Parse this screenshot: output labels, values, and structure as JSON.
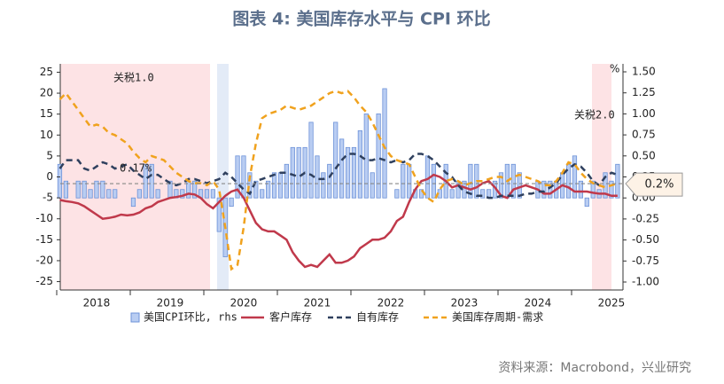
{
  "chart_data": {
    "type": "bar_line",
    "title": "图表 4:  美国库存水平与 CPI 环比",
    "source": "资料来源：Macrobond，兴业研究",
    "y2_unit": "%",
    "annotations": [
      "关税1.0",
      "关税2.0"
    ],
    "reference": {
      "value": 0.17,
      "label": "0.17%",
      "callout": "0.2%",
      "color": "#888888"
    },
    "categories": [
      null,
      null,
      null,
      null,
      null,
      null,
      "2018",
      null,
      null,
      null,
      null,
      null,
      null,
      null,
      null,
      null,
      null,
      null,
      "2019",
      null,
      null,
      null,
      null,
      null,
      null,
      null,
      null,
      null,
      null,
      null,
      "2020",
      null,
      null,
      null,
      null,
      null,
      null,
      null,
      null,
      null,
      null,
      null,
      "2021",
      null,
      null,
      null,
      null,
      null,
      null,
      null,
      null,
      null,
      null,
      null,
      "2022",
      null,
      null,
      null,
      null,
      null,
      null,
      null,
      null,
      null,
      null,
      null,
      "2023",
      null,
      null,
      null,
      null,
      null,
      null,
      null,
      null,
      null,
      null,
      null,
      "2024",
      null,
      null,
      null,
      null,
      null,
      null,
      null,
      null,
      null,
      null,
      null,
      "2025",
      null
    ],
    "ylim": [
      -27,
      27
    ],
    "yticks": [
      25,
      20,
      15,
      10,
      5,
      0,
      -5,
      -10,
      -15,
      -20,
      -25
    ],
    "y2lim": [
      -1.095,
      1.595
    ],
    "y2ticks": [
      {
        "value": 1.5,
        "label": "1.50"
      },
      {
        "value": 1.25,
        "label": "1.25"
      },
      {
        "value": 1,
        "label": "1.00"
      },
      {
        "value": 0.75,
        "label": "0.75"
      },
      {
        "value": 0.5,
        "label": "0.50"
      },
      {
        "value": 0.25,
        "label": "0.25"
      },
      {
        "value": 0,
        "label": "0.00"
      },
      {
        "value": -0.25,
        "label": "-0.25"
      },
      {
        "value": -0.5,
        "label": "-0.50"
      },
      {
        "value": -0.75,
        "label": "-0.75"
      },
      {
        "value": -1,
        "label": "-1.00"
      }
    ],
    "series": [
      {
        "name": "美国CPI环比, rhs",
        "type": "bar",
        "axis": "y2",
        "color": "#b9cdf2",
        "values": [
          0.4,
          0.2,
          0.0,
          0.2,
          0.2,
          0.1,
          0.2,
          0.2,
          0.1,
          0.1,
          0.0,
          0.0,
          -0.1,
          0.1,
          0.4,
          0.4,
          0.1,
          0.0,
          0.2,
          0.1,
          0.1,
          0.2,
          0.2,
          0.1,
          0.1,
          0.1,
          -0.4,
          -0.7,
          -0.1,
          0.5,
          0.5,
          0.3,
          0.2,
          0.1,
          0.2,
          0.3,
          0.3,
          0.4,
          0.6,
          0.6,
          0.6,
          0.9,
          0.5,
          0.3,
          0.4,
          0.9,
          0.7,
          0.6,
          0.6,
          0.8,
          1.0,
          0.3,
          1.0,
          1.3,
          0.0,
          0.1,
          0.4,
          0.4,
          0.1,
          0.1,
          0.5,
          0.4,
          0.1,
          0.4,
          0.1,
          0.2,
          0.2,
          0.4,
          0.4,
          0.1,
          0.1,
          0.2,
          0.3,
          0.4,
          0.4,
          0.3,
          0.0,
          0.0,
          0.2,
          0.2,
          0.2,
          0.2,
          0.3,
          0.4,
          0.5,
          0.2,
          -0.1,
          0.2,
          0.1,
          0.3,
          0.2,
          0.4
        ]
      },
      {
        "name": "客户库存",
        "type": "line",
        "color": "#c0394b",
        "dash": false,
        "values": [
          -5.5,
          -5.8,
          -6,
          -6.3,
          -7,
          -8,
          -9,
          -10,
          -9.8,
          -9.5,
          -9,
          -9.2,
          -9,
          -8.5,
          -7.5,
          -7,
          -6,
          -5.5,
          -5,
          -4.8,
          -4.5,
          -4,
          -4.2,
          -5,
          -6.5,
          -7.5,
          -6,
          -4.5,
          -3.5,
          -3,
          -5,
          -8,
          -11,
          -12.5,
          -13,
          -13,
          -14,
          -15,
          -18,
          -20,
          -21.5,
          -21,
          -21.5,
          -20,
          -18.5,
          -20.5,
          -20.5,
          -20,
          -19,
          -17,
          -16,
          -15,
          -15,
          -14.5,
          -13,
          -10.5,
          -9.5,
          -6,
          -3,
          -1,
          -0.5,
          0.5,
          0,
          -1,
          -2.5,
          -2,
          -2.5,
          -3,
          -2.5,
          -1.5,
          -1,
          -2.5,
          -4.5,
          -5,
          -3,
          -2.5,
          -2,
          -2.5,
          -3,
          -4,
          -4,
          -3,
          -2,
          -2.5,
          -3.5,
          -3.5,
          -3.5,
          -3.8,
          -4,
          -4,
          -4.5,
          -4.5
        ]
      },
      {
        "name": "自有库存",
        "type": "line",
        "color": "#2f405e",
        "dash": true,
        "values": [
          2,
          4,
          4,
          4,
          2,
          1.5,
          2.5,
          3.5,
          3,
          2,
          2.5,
          3,
          1.5,
          0.5,
          -0.5,
          0.5,
          0.5,
          -0.5,
          -1.5,
          -2,
          -1.5,
          -0.5,
          -0.5,
          -1,
          -1.5,
          -1,
          -0.5,
          1,
          0,
          -1.5,
          -3,
          -4,
          -1,
          -0.5,
          0,
          0.5,
          1,
          1,
          0.5,
          0,
          1,
          0.5,
          -0.5,
          -0.5,
          0,
          2,
          4,
          5.5,
          5.5,
          5,
          4,
          4,
          4.5,
          4,
          3.5,
          4,
          3.5,
          4,
          5.5,
          5.5,
          5,
          4,
          2.5,
          1,
          0,
          -2,
          -3.5,
          -4,
          -4.5,
          -4.5,
          -5,
          -5,
          -4.5,
          -4.5,
          -4.5,
          -4.5,
          -4,
          -4,
          -3.5,
          -3.5,
          -2.5,
          -1.5,
          0.5,
          2,
          3,
          2.5,
          1,
          -1,
          -2,
          0,
          1,
          0.5
        ]
      },
      {
        "name": "美国库存周期-需求",
        "type": "line",
        "color": "#f0a21e",
        "dash": true,
        "values": [
          18.5,
          20,
          18,
          16,
          14,
          12,
          12.5,
          12,
          10.5,
          10,
          9,
          8,
          6,
          4.5,
          3.5,
          5,
          4.5,
          4,
          2.5,
          1,
          0,
          -1,
          -1.5,
          -1.5,
          -2,
          -1,
          -3,
          -12,
          -22,
          -21,
          -12,
          0,
          8,
          14,
          15,
          15.5,
          16,
          17,
          16.5,
          16,
          16.5,
          17,
          18,
          19,
          20,
          20.5,
          20,
          20.5,
          19,
          17,
          15.5,
          13,
          10,
          7,
          5,
          4,
          3.5,
          3,
          0,
          -3,
          -5,
          -6,
          -3,
          -1,
          -0.5,
          -1,
          -2,
          -1.5,
          -1,
          -1,
          -0.5,
          0,
          0,
          -1,
          0,
          0.5,
          0,
          -0.5,
          -1,
          -2,
          -2,
          -1,
          1,
          3.5,
          3,
          1,
          -0.5,
          -1.5,
          -2,
          -2.5,
          -2,
          -1.5
        ]
      }
    ]
  }
}
